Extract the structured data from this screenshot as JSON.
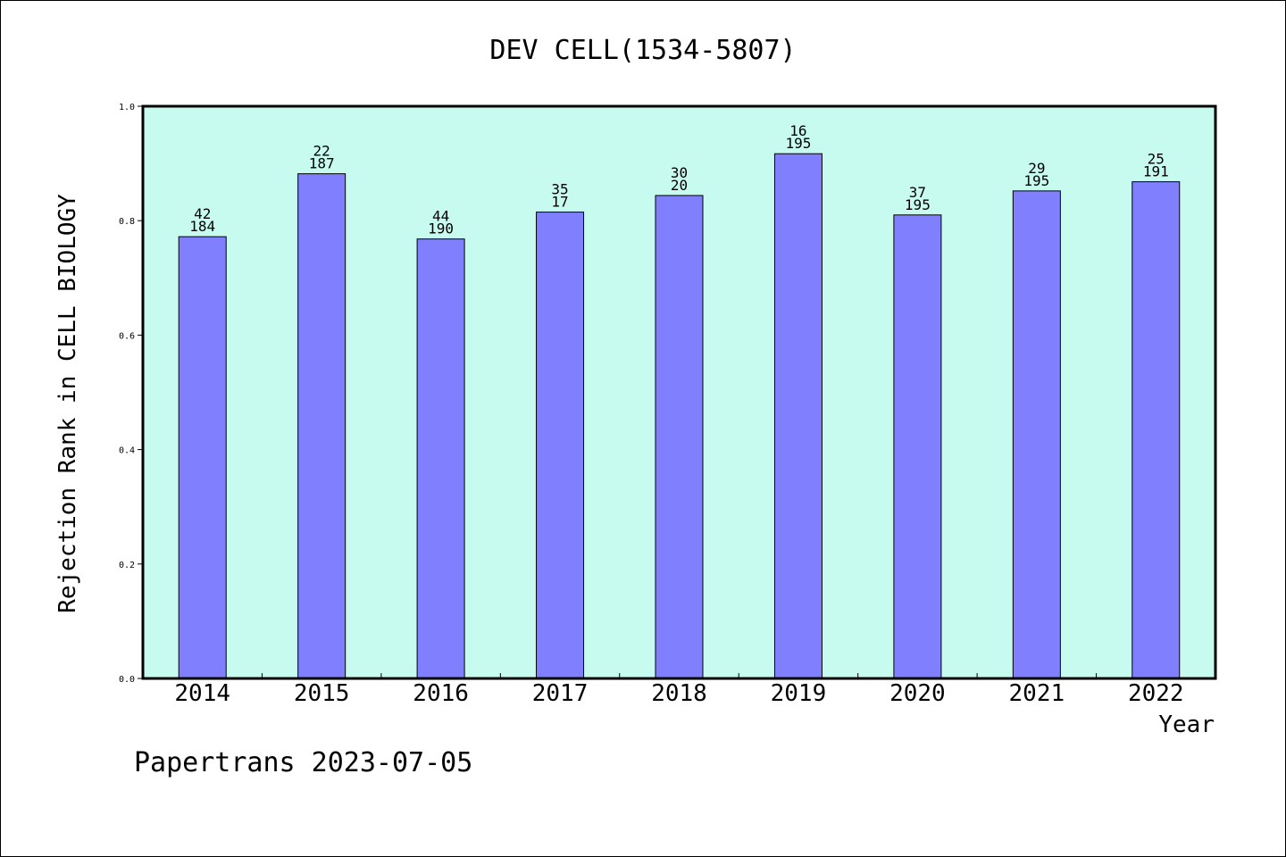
{
  "chart_data": {
    "type": "bar",
    "title": "DEV CELL(1534-5807)",
    "xlabel": "Year",
    "ylabel": "Rejection Rank in CELL BIOLOGY",
    "ylim": [
      0,
      1.0
    ],
    "yticks": [
      "0.0",
      "0.2",
      "0.4",
      "0.6",
      "0.8",
      "1.0"
    ],
    "categories": [
      "2014",
      "2015",
      "2016",
      "2017",
      "2018",
      "2019",
      "2020",
      "2021",
      "2022"
    ],
    "values": [
      0.772,
      0.882,
      0.768,
      0.815,
      0.844,
      0.917,
      0.81,
      0.852,
      0.868
    ],
    "labels_top": [
      "42",
      "22",
      "44",
      "35",
      "30",
      "16",
      "37",
      "29",
      "25"
    ],
    "labels_bottom": [
      "184",
      "187",
      "190",
      "17",
      "20",
      "195",
      "195",
      "195",
      "191"
    ],
    "grid": false,
    "colors": {
      "bar": "#8080ff",
      "plot_bg": "#c8fbef"
    }
  },
  "footer": "Papertrans 2023-07-05"
}
